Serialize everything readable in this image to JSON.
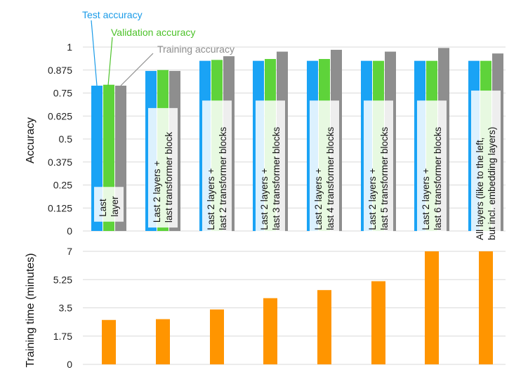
{
  "chart_data": [
    {
      "type": "bar",
      "categories": [
        [
          "Last",
          "layer"
        ],
        [
          "Last 2 layers +",
          "last transformer block"
        ],
        [
          "Last 2 layers +",
          "last 2 transformer blocks"
        ],
        [
          "Last 2 layers +",
          "last 3 transformer blocks"
        ],
        [
          "Last 2 layers +",
          "last 4 transformer blocks"
        ],
        [
          "Last 2 layers +",
          "last 5 transformer blocks"
        ],
        [
          "Last 2 layers +",
          "last 6 transformer blocks"
        ],
        [
          "All layers (like to the left,",
          "but incl. embedding layers)"
        ]
      ],
      "series": [
        {
          "name": "Test accuracy",
          "color": "#1AA3F5",
          "values": [
            0.79,
            0.87,
            0.925,
            0.925,
            0.925,
            0.925,
            0.925,
            0.925
          ]
        },
        {
          "name": "Validation accuracy",
          "color": "#5ED33A",
          "values": [
            0.795,
            0.875,
            0.93,
            0.935,
            0.935,
            0.925,
            0.925,
            0.925
          ]
        },
        {
          "name": "Training accuracy",
          "color": "#8E8E8E",
          "values": [
            0.79,
            0.87,
            0.95,
            0.975,
            0.985,
            0.975,
            0.995,
            0.965
          ]
        }
      ],
      "legend_text_colors": [
        "#1A9BE8",
        "#4DC22A",
        "#8E8E8E"
      ],
      "ylabel": "Accuracy",
      "ylim": [
        0,
        1
      ],
      "yticks": [
        "0",
        "0.125",
        "0.25",
        "0.375",
        "0.5",
        "0.625",
        "0.75",
        "0.875",
        "1"
      ],
      "grid": true
    },
    {
      "type": "bar",
      "series": [
        {
          "name": "Training time",
          "color": "#FF9500",
          "values": [
            2.75,
            2.8,
            3.4,
            4.1,
            4.6,
            5.15,
            7.0,
            7.0
          ]
        }
      ],
      "ylabel": "Training time (minutes)",
      "ylim": [
        0,
        7
      ],
      "yticks": [
        "0",
        "1.75",
        "3.5",
        "5.25",
        "7"
      ],
      "grid": true
    }
  ]
}
